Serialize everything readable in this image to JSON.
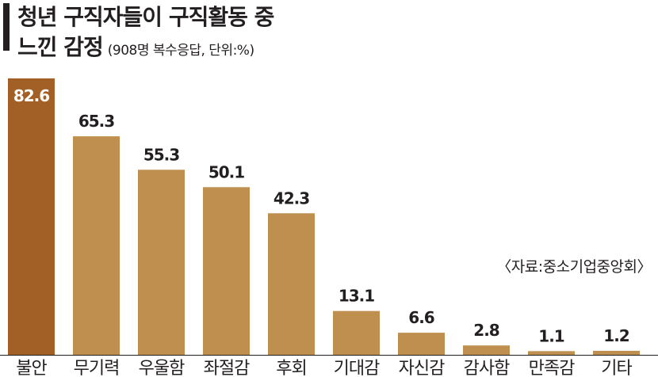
{
  "title": {
    "line1": "청년 구직자들이 구직활동 중",
    "line2": "느낀 감정",
    "subtitle": "(908명 복수응답, 단위:%)"
  },
  "source": "〈자료:중소기업중앙회〉",
  "colors": {
    "bar": "#bf8f4f",
    "bar_highlight": "#a25f26",
    "highlight_label": "#ffffff",
    "label": "#231f20",
    "baseline": "#231f20"
  },
  "chart_data": {
    "type": "bar",
    "categories": [
      "불안",
      "무기력",
      "우울함",
      "좌절감",
      "후회",
      "기대감",
      "자신감",
      "감사함",
      "만족감",
      "기타"
    ],
    "values": [
      82.6,
      65.3,
      55.3,
      50.1,
      42.3,
      13.1,
      6.6,
      2.8,
      1.1,
      1.2
    ],
    "value_labels": [
      "82.6",
      "65.3",
      "55.3",
      "50.1",
      "42.3",
      "13.1",
      "6.6",
      "2.8",
      "1.1",
      "1.2"
    ],
    "highlight_index": 0,
    "title": "청년 구직자들이 구직활동 중 느낀 감정",
    "xlabel": "",
    "ylabel": "",
    "ylim": [
      0,
      82.6
    ],
    "grid": false,
    "legend": "none"
  }
}
